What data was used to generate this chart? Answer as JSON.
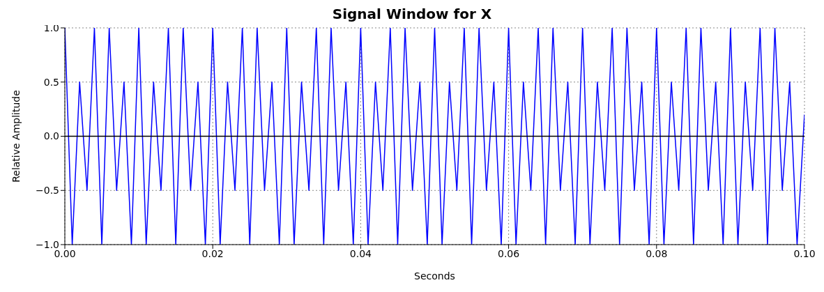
{
  "chart_data": {
    "type": "line",
    "title": "Signal Window for X",
    "xlabel": "Seconds",
    "ylabel": "Relative Amplitude",
    "x": [
      0,
      0.001,
      0.002,
      0.003,
      0.004,
      0.005,
      0.006,
      0.007,
      0.008,
      0.009,
      0.01,
      0.011,
      0.012,
      0.013,
      0.014,
      0.015,
      0.016,
      0.017,
      0.018,
      0.019,
      0.02,
      0.021,
      0.022,
      0.023,
      0.024,
      0.025,
      0.026,
      0.027,
      0.028,
      0.029,
      0.03,
      0.031,
      0.032,
      0.033,
      0.034,
      0.035,
      0.036,
      0.037,
      0.038,
      0.039,
      0.04,
      0.041,
      0.042,
      0.043,
      0.044,
      0.045,
      0.046,
      0.047,
      0.048,
      0.049,
      0.05,
      0.051,
      0.052,
      0.053,
      0.054,
      0.055,
      0.056,
      0.057,
      0.058,
      0.059,
      0.06,
      0.061,
      0.062,
      0.063,
      0.064,
      0.065,
      0.066,
      0.067,
      0.068,
      0.069,
      0.07,
      0.071,
      0.072,
      0.073,
      0.074,
      0.075,
      0.076,
      0.077,
      0.078,
      0.079,
      0.08,
      0.081,
      0.082,
      0.083,
      0.084,
      0.085,
      0.086,
      0.087,
      0.088,
      0.089,
      0.09,
      0.091,
      0.092,
      0.093,
      0.094,
      0.095,
      0.096,
      0.097,
      0.098,
      0.099,
      0.1
    ],
    "series": [
      {
        "color": "#0000ff",
        "values": [
          1,
          -1,
          0.5,
          -0.5,
          1,
          -1,
          1,
          -0.5,
          0.5,
          -1,
          1,
          -1,
          0.5,
          -0.5,
          1,
          -1,
          1,
          -0.5,
          0.5,
          -1,
          1,
          -1,
          0.5,
          -0.5,
          1,
          -1,
          1,
          -0.5,
          0.5,
          -1,
          1,
          -1,
          0.5,
          -0.5,
          1,
          -1,
          1,
          -0.5,
          0.5,
          -1,
          1,
          -1,
          0.5,
          -0.5,
          1,
          -1,
          1,
          -0.5,
          0.5,
          -1,
          1,
          -1,
          0.5,
          -0.5,
          1,
          -1,
          1,
          -0.5,
          0.5,
          -1,
          1,
          -1,
          0.5,
          -0.5,
          1,
          -1,
          1,
          -0.5,
          0.5,
          -1,
          1,
          -1,
          0.5,
          -0.5,
          1,
          -1,
          1,
          -0.5,
          0.5,
          -1,
          1,
          -1,
          0.5,
          -0.5,
          1,
          -1,
          1,
          -0.5,
          0.5,
          -1,
          1,
          -1,
          0.5,
          -0.5,
          1,
          -1,
          1,
          -0.5,
          0.5,
          -1,
          0.2
        ]
      }
    ],
    "xlim": [
      0,
      0.1
    ],
    "xticks": [
      {
        "value": 0,
        "label": "0.00"
      },
      {
        "value": 0.02,
        "label": "0.02"
      },
      {
        "value": 0.04,
        "label": "0.04"
      },
      {
        "value": 0.06,
        "label": "0.06"
      },
      {
        "value": 0.08,
        "label": "0.08"
      },
      {
        "value": 0.1,
        "label": "0.10"
      }
    ],
    "ylim": [
      -1,
      1
    ],
    "yticks": [
      {
        "value": -1,
        "label": "−1.0"
      },
      {
        "value": -0.5,
        "label": "−0.5"
      },
      {
        "value": 0,
        "label": "0.0"
      },
      {
        "value": 0.5,
        "label": "0.5"
      },
      {
        "value": 1,
        "label": "1.0"
      }
    ],
    "grid": true,
    "marker": "none",
    "line_style": "solid",
    "ref_lines": [
      {
        "axis": "y",
        "value": 0,
        "color": "#000000",
        "line_style": "solid"
      }
    ]
  }
}
